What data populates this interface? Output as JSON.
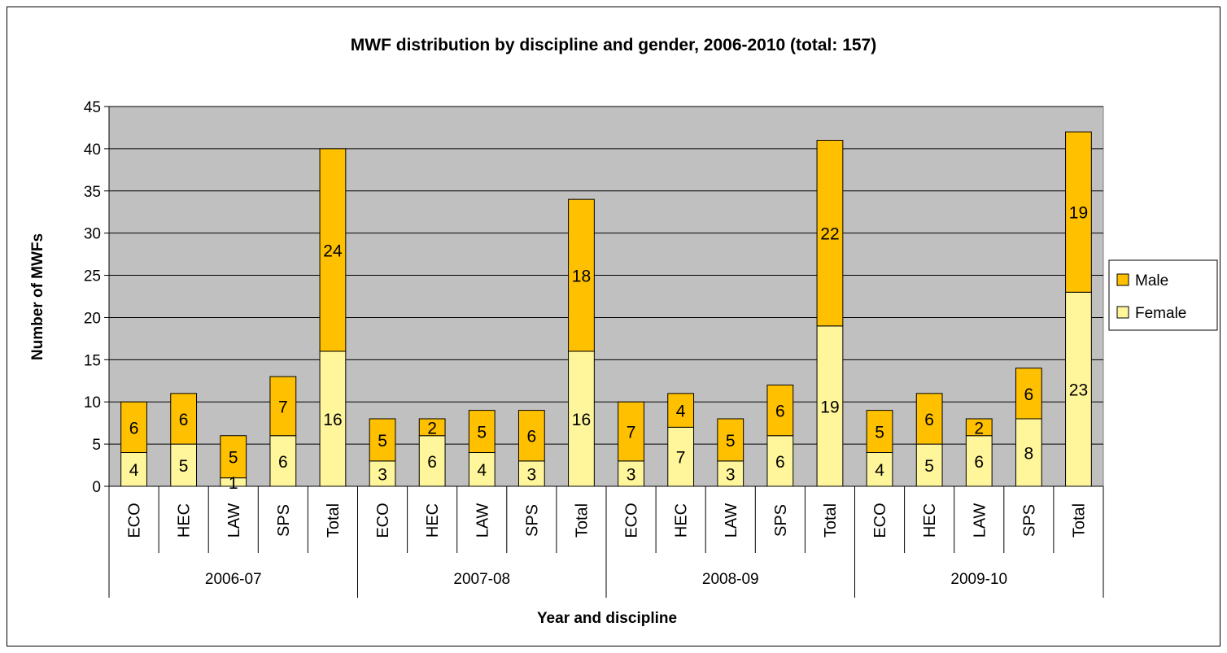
{
  "chart_data": {
    "type": "bar",
    "stacked": true,
    "title": "MWF distribution by discipline and gender, 2006-2010 (total: 157)",
    "xlabel": "Year and discipline",
    "ylabel": "Number of MWFs",
    "ylim": [
      0,
      45
    ],
    "yticks": [
      0,
      5,
      10,
      15,
      20,
      25,
      30,
      35,
      40,
      45
    ],
    "grid": true,
    "legend_position": "right",
    "groups": [
      {
        "label": "2006-07",
        "categories": [
          "ECO",
          "HEC",
          "LAW",
          "SPS",
          "Total"
        ]
      },
      {
        "label": "2007-08",
        "categories": [
          "ECO",
          "HEC",
          "LAW",
          "SPS",
          "Total"
        ]
      },
      {
        "label": "2008-09",
        "categories": [
          "ECO",
          "HEC",
          "LAW",
          "SPS",
          "Total"
        ]
      },
      {
        "label": "2009-10",
        "categories": [
          "ECO",
          "HEC",
          "LAW",
          "SPS",
          "Total"
        ]
      }
    ],
    "series": [
      {
        "name": "Female",
        "color": "#FFF59B",
        "values": [
          4,
          5,
          1,
          6,
          16,
          3,
          6,
          4,
          3,
          16,
          3,
          7,
          3,
          6,
          19,
          4,
          5,
          6,
          8,
          23
        ]
      },
      {
        "name": "Male",
        "color": "#FFC000",
        "values": [
          6,
          6,
          5,
          7,
          24,
          5,
          2,
          5,
          6,
          18,
          7,
          4,
          5,
          6,
          22,
          5,
          6,
          2,
          6,
          19
        ]
      }
    ],
    "legend_order": [
      "Male",
      "Female"
    ],
    "plot_background": "#C0C0C0"
  }
}
